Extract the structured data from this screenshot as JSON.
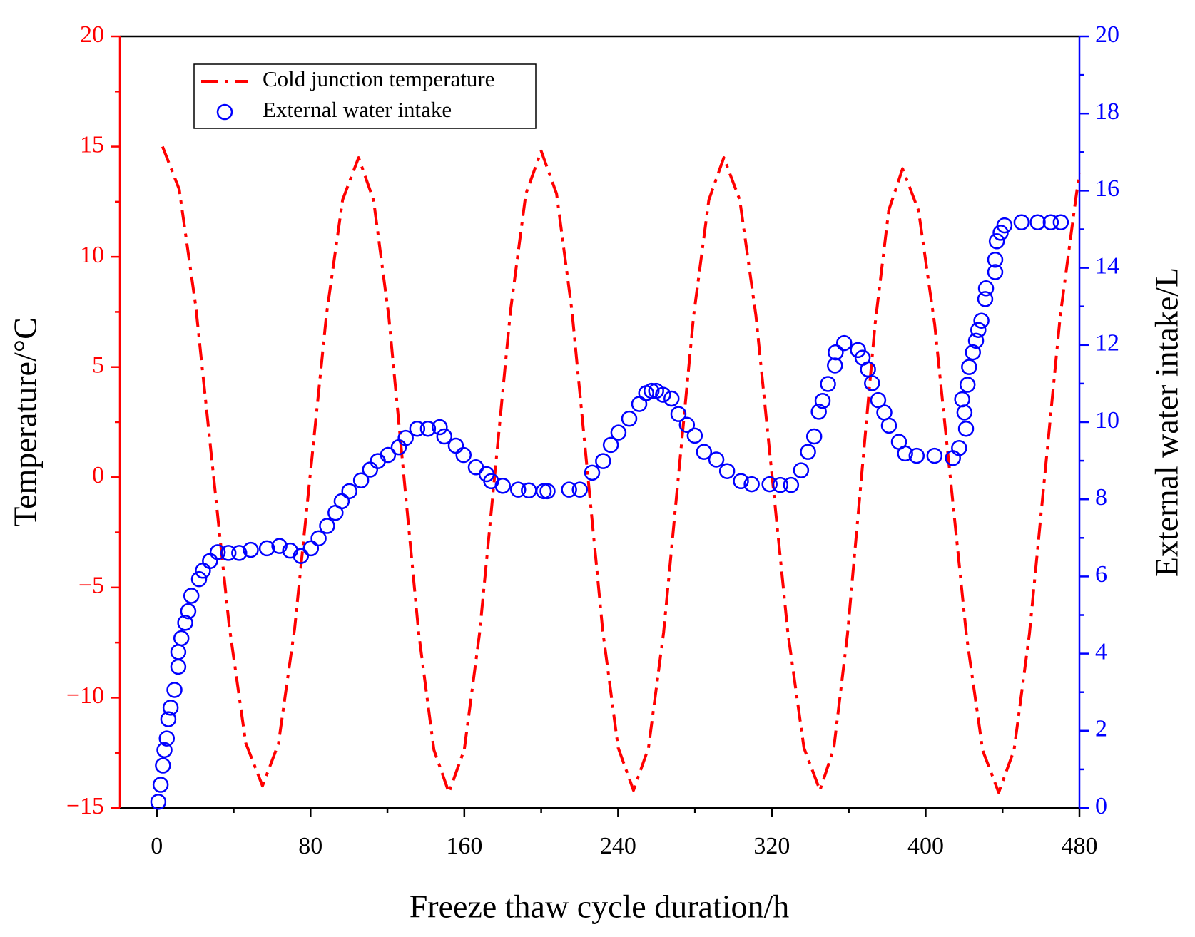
{
  "chart_data": {
    "type": "line",
    "xlabel": "Freeze thaw cycle duration/h",
    "ylabel": "Temperature/°C",
    "y2label": "External water intake/L",
    "xlim": [
      -19.2,
      480
    ],
    "xticks": [
      0,
      80,
      160,
      240,
      320,
      400,
      480
    ],
    "x_minor_ticks": [
      40,
      120,
      200,
      280,
      360,
      440
    ],
    "ylim": [
      -15,
      20
    ],
    "yticks": [
      {
        "value": -15,
        "label": "−15"
      },
      {
        "value": -10,
        "label": "−10"
      },
      {
        "value": -5,
        "label": "−5"
      },
      0,
      5,
      10,
      15,
      20
    ],
    "y_minor_ticks": [
      -12.5,
      -7.5,
      -2.5,
      2.5,
      7.5,
      12.5,
      17.5
    ],
    "ylim_color": "#ff0000",
    "y2lim": [
      0,
      20
    ],
    "y2ticks": [
      0,
      2,
      4,
      6,
      8,
      10,
      12,
      14,
      16,
      18,
      20
    ],
    "y2_minor_ticks": [
      1,
      3,
      5,
      7,
      9,
      11,
      13,
      15,
      17,
      19
    ],
    "y2_color": "#0000ff",
    "grid": false,
    "legend": "upper left",
    "series": [
      {
        "name": "Cold junction temperature",
        "type": "line",
        "color": "#ff0000",
        "axis": "y",
        "x": [
          3,
          11.7,
          20.3,
          29,
          37.7,
          46.3,
          55,
          63.3,
          71.7,
          80,
          88.3,
          96.7,
          105,
          112.8,
          120.7,
          128.5,
          136.3,
          144.2,
          152,
          160,
          168,
          176,
          184,
          192,
          200,
          208,
          216,
          224,
          232,
          240,
          248,
          255.8,
          263.7,
          271.5,
          279.3,
          287.2,
          295,
          303.3,
          311.7,
          320,
          328.3,
          336.7,
          345,
          352.2,
          359.3,
          366.5,
          373.7,
          380.8,
          388,
          396.3,
          404.7,
          413,
          421.3,
          429.7,
          438,
          446,
          454,
          462,
          470,
          478,
          480
        ],
        "values": [
          15,
          13.06,
          7.75,
          0.5,
          -6.75,
          -12.06,
          -14,
          -12.09,
          -6.88,
          0.25,
          7.38,
          12.59,
          14.5,
          12.57,
          7.3,
          0.1,
          -7.1,
          -12.37,
          -14.3,
          -12.35,
          -7.03,
          0.25,
          7.53,
          12.85,
          14.8,
          12.86,
          7.55,
          0.3,
          -6.95,
          -12.26,
          -14.2,
          -12.28,
          -7.03,
          0.15,
          7.33,
          12.58,
          14.5,
          12.58,
          7.33,
          0.15,
          -7.03,
          -12.28,
          -14.2,
          -12.31,
          -7.15,
          -0.1,
          6.95,
          12.11,
          14,
          12.1,
          6.93,
          -0.15,
          -7.23,
          -12.4,
          -14.3,
          -12.37,
          -7.1,
          0.1,
          7.3,
          12.57,
          13.8
        ]
      },
      {
        "name": "External water intake",
        "type": "scatter",
        "color": "#0000ff",
        "axis": "y2",
        "x": [
          0.8,
          2,
          3.2,
          4,
          5.2,
          6,
          7.2,
          9.2,
          11.2,
          11.2,
          12.8,
          14.8,
          16.4,
          18,
          22,
          24,
          27.7,
          31.7,
          37.3,
          42.9,
          48.9,
          57.3,
          63.8,
          69.4,
          75,
          80.2,
          84.2,
          88.6,
          93,
          96.2,
          100.2,
          106.3,
          111,
          115,
          120.3,
          125.9,
          129.5,
          135.5,
          141.1,
          147.2,
          149.6,
          155.6,
          159.6,
          166,
          171.6,
          174,
          180,
          188,
          193.6,
          201.3,
          203.3,
          214.5,
          220.1,
          226.5,
          232.2,
          236.2,
          240.2,
          245.8,
          251,
          254.6,
          257.4,
          259.8,
          263.4,
          267.8,
          271.4,
          275.8,
          279.9,
          284.7,
          291.1,
          296.7,
          303.9,
          309.5,
          318.8,
          324.4,
          330,
          335.2,
          338.8,
          342,
          344.4,
          346.4,
          349.2,
          352.8,
          353.2,
          357.6,
          364.8,
          367.2,
          370,
          372.1,
          375.3,
          378.5,
          380.9,
          386.1,
          389.3,
          395.3,
          404.6,
          414.2,
          417.4,
          419,
          420.2,
          421,
          421.8,
          422.6,
          424.6,
          426.2,
          427.4,
          429,
          431,
          431.4,
          436.2,
          436.2,
          437,
          439,
          441,
          449.9,
          458.3,
          465.1,
          470.3
        ],
        "values": [
          0.16,
          0.6,
          1.1,
          1.5,
          1.8,
          2.3,
          2.6,
          3.06,
          3.66,
          4.04,
          4.4,
          4.8,
          5.1,
          5.5,
          5.93,
          6.15,
          6.4,
          6.63,
          6.61,
          6.61,
          6.69,
          6.73,
          6.79,
          6.67,
          6.53,
          6.73,
          6.99,
          7.31,
          7.65,
          7.95,
          8.21,
          8.49,
          8.77,
          8.99,
          9.15,
          9.35,
          9.59,
          9.83,
          9.83,
          9.87,
          9.63,
          9.39,
          9.15,
          8.83,
          8.65,
          8.47,
          8.35,
          8.25,
          8.23,
          8.21,
          8.21,
          8.25,
          8.25,
          8.69,
          8.99,
          9.41,
          9.73,
          10.09,
          10.47,
          10.75,
          10.81,
          10.81,
          10.71,
          10.61,
          10.21,
          9.93,
          9.65,
          9.23,
          9.03,
          8.73,
          8.47,
          8.39,
          8.39,
          8.37,
          8.37,
          8.75,
          9.23,
          9.63,
          10.27,
          10.55,
          10.99,
          11.47,
          11.81,
          12.05,
          11.87,
          11.67,
          11.37,
          11.01,
          10.57,
          10.25,
          9.91,
          9.49,
          9.19,
          9.13,
          9.13,
          9.07,
          9.33,
          10.59,
          10.25,
          9.83,
          10.97,
          11.43,
          11.81,
          12.11,
          12.39,
          12.63,
          13.19,
          13.47,
          13.89,
          14.21,
          14.69,
          14.91,
          15.1,
          15.18,
          15.18,
          15.18,
          15.18
        ]
      }
    ]
  }
}
